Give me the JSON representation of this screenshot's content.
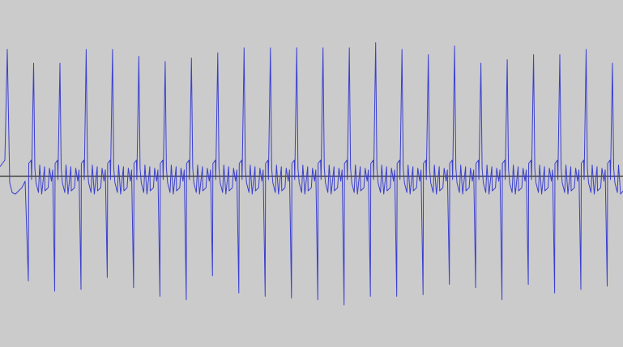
{
  "waveform": {
    "line_color": "#3a3fd0",
    "baseline_color": "#000000",
    "background_color": "#cbcbcb",
    "beats": [
      {
        "peak": 0.74,
        "trough": 0.61
      },
      {
        "peak": 0.66,
        "trough": 0.67
      },
      {
        "peak": 0.66,
        "trough": 0.66
      },
      {
        "peak": 0.74,
        "trough": 0.59
      },
      {
        "peak": 0.74,
        "trough": 0.65
      },
      {
        "peak": 0.7,
        "trough": 0.7
      },
      {
        "peak": 0.67,
        "trough": 0.72
      },
      {
        "peak": 0.69,
        "trough": 0.58
      },
      {
        "peak": 0.72,
        "trough": 0.68
      },
      {
        "peak": 0.75,
        "trough": 0.7
      },
      {
        "peak": 0.75,
        "trough": 0.71
      },
      {
        "peak": 0.75,
        "trough": 0.72
      },
      {
        "peak": 0.75,
        "trough": 0.75
      },
      {
        "peak": 0.75,
        "trough": 0.7
      },
      {
        "peak": 0.78,
        "trough": 0.7
      },
      {
        "peak": 0.74,
        "trough": 0.69
      },
      {
        "peak": 0.71,
        "trough": 0.63
      },
      {
        "peak": 0.76,
        "trough": 0.65
      },
      {
        "peak": 0.66,
        "trough": 0.72
      },
      {
        "peak": 0.68,
        "trough": 0.63
      },
      {
        "peak": 0.71,
        "trough": 0.68
      },
      {
        "peak": 0.71,
        "trough": 0.66
      },
      {
        "peak": 0.74,
        "trough": 0.64
      },
      {
        "peak": 0.66,
        "trough": 0.64
      }
    ]
  }
}
